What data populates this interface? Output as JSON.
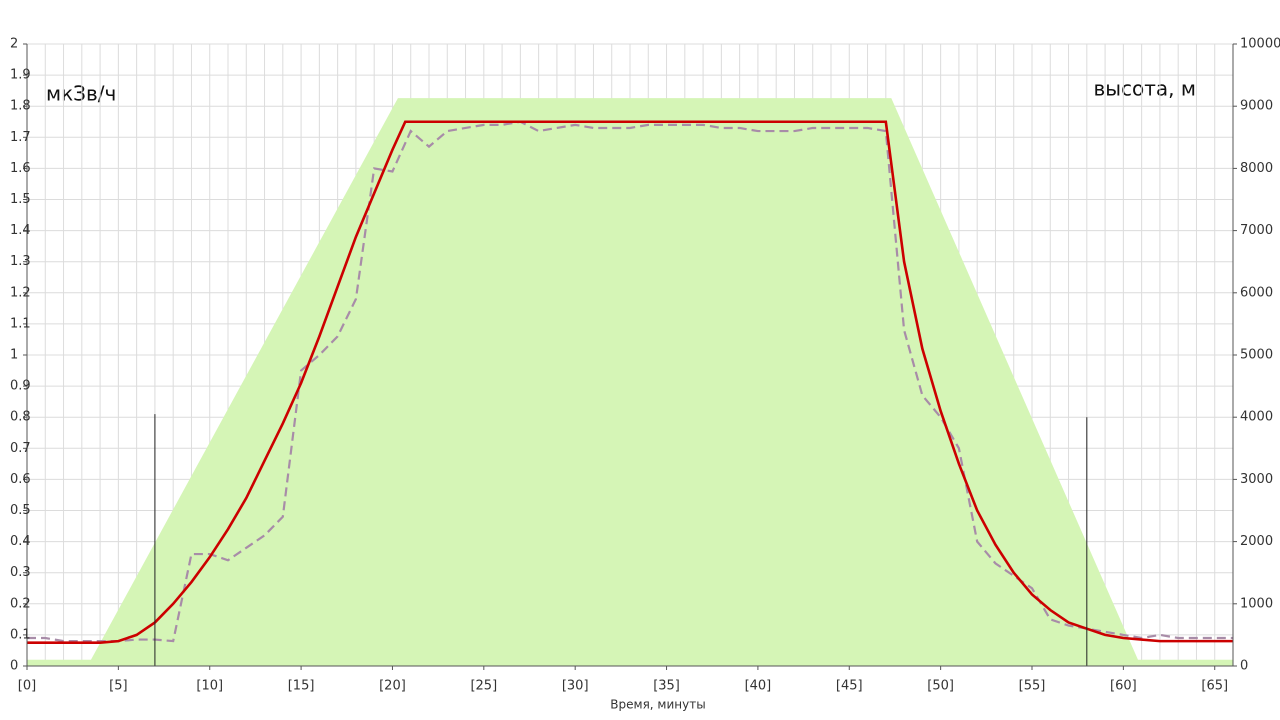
{
  "chart_data": {
    "type": "line",
    "y_label": "мкЗв/ч",
    "y2_label": "высота, м",
    "x_label": "Время, минуты",
    "xlim": [
      0,
      66
    ],
    "xticks": [
      {
        "value": 0,
        "label": "[0]"
      },
      {
        "value": 5,
        "label": "[5]"
      },
      {
        "value": 10,
        "label": "[10]"
      },
      {
        "value": 15,
        "label": "[15]"
      },
      {
        "value": 20,
        "label": "[20]"
      },
      {
        "value": 25,
        "label": "[25]"
      },
      {
        "value": 30,
        "label": "[30]"
      },
      {
        "value": 35,
        "label": "[35]"
      },
      {
        "value": 40,
        "label": "[40]"
      },
      {
        "value": 45,
        "label": "[45]"
      },
      {
        "value": 50,
        "label": "[50]"
      },
      {
        "value": 55,
        "label": "[55]"
      },
      {
        "value": 60,
        "label": "[60]"
      },
      {
        "value": 65,
        "label": "[65]"
      }
    ],
    "x_minor_grid": [
      0,
      1,
      2,
      3,
      4,
      5,
      6,
      7,
      8,
      9,
      10,
      11,
      12,
      13,
      14,
      15,
      16,
      17,
      18,
      19,
      20,
      21,
      22,
      23,
      24,
      25,
      26,
      27,
      28,
      29,
      30,
      31,
      32,
      33,
      34,
      35,
      36,
      37,
      38,
      39,
      40,
      41,
      42,
      43,
      44,
      45,
      46,
      47,
      48,
      49,
      50,
      51,
      52,
      53,
      54,
      55,
      56,
      57,
      58,
      59,
      60,
      61,
      62,
      63,
      64,
      65,
      66
    ],
    "ylim": [
      0,
      2
    ],
    "yticks": [
      0,
      0.1,
      0.2,
      0.3,
      0.4,
      0.5,
      0.6,
      0.7,
      0.8,
      0.9,
      1,
      1.1,
      1.2,
      1.3,
      1.4,
      1.5,
      1.6,
      1.7,
      1.8,
      1.9,
      2
    ],
    "y2lim": [
      0,
      10000
    ],
    "y2ticks": [
      0,
      1000,
      2000,
      3000,
      4000,
      5000,
      6000,
      7000,
      8000,
      9000,
      10000
    ],
    "grid": true,
    "series": [
      {
        "style": "area",
        "axis": "y2",
        "color": "#d5f5b6",
        "x": [
          0,
          3.5,
          20.3,
          47.3,
          60.8,
          66
        ],
        "values": [
          100,
          100,
          9130,
          9130,
          100,
          100
        ]
      },
      {
        "style": "dashed",
        "color": "#a88ca8",
        "x": [
          0,
          1,
          2,
          3,
          4,
          5,
          6,
          7,
          8,
          9,
          10,
          11,
          12,
          13,
          14,
          15,
          16,
          17,
          18,
          19,
          20,
          21,
          22,
          23,
          24,
          25,
          26,
          27,
          28,
          29,
          30,
          31,
          32,
          33,
          34,
          35,
          36,
          37,
          38,
          39,
          40,
          41,
          42,
          43,
          44,
          45,
          46,
          47,
          48,
          49,
          50,
          51,
          52,
          53,
          54,
          55,
          56,
          57,
          58,
          59,
          60,
          61,
          62,
          63,
          64,
          65,
          66
        ],
        "values": [
          0.09,
          0.09,
          0.08,
          0.08,
          0.08,
          0.08,
          0.085,
          0.085,
          0.08,
          0.36,
          0.36,
          0.34,
          0.38,
          0.42,
          0.48,
          0.95,
          1.0,
          1.06,
          1.18,
          1.6,
          1.59,
          1.72,
          1.67,
          1.72,
          1.73,
          1.74,
          1.74,
          1.75,
          1.72,
          1.73,
          1.74,
          1.73,
          1.73,
          1.73,
          1.74,
          1.74,
          1.74,
          1.74,
          1.73,
          1.73,
          1.72,
          1.72,
          1.72,
          1.73,
          1.73,
          1.73,
          1.73,
          1.72,
          1.08,
          0.87,
          0.8,
          0.7,
          0.4,
          0.33,
          0.29,
          0.25,
          0.15,
          0.13,
          0.12,
          0.11,
          0.1,
          0.09,
          0.1,
          0.09,
          0.09,
          0.09,
          0.09
        ]
      },
      {
        "style": "solid",
        "color": "#cc0000",
        "x": [
          0,
          4,
          5,
          6,
          7,
          8,
          9,
          10,
          11,
          12,
          13,
          14,
          15,
          16,
          17,
          18,
          19,
          20,
          20.7,
          47,
          48,
          49,
          50,
          51,
          52,
          53,
          54,
          55,
          56,
          57,
          58,
          59,
          60,
          61,
          62,
          66
        ],
        "values": [
          0.075,
          0.075,
          0.08,
          0.1,
          0.14,
          0.2,
          0.27,
          0.35,
          0.44,
          0.54,
          0.66,
          0.78,
          0.91,
          1.06,
          1.22,
          1.38,
          1.52,
          1.66,
          1.75,
          1.75,
          1.3,
          1.02,
          0.82,
          0.65,
          0.5,
          0.39,
          0.3,
          0.23,
          0.18,
          0.14,
          0.12,
          0.1,
          0.09,
          0.085,
          0.08,
          0.08
        ]
      }
    ],
    "reference_lines": [
      {
        "x": 7,
        "y": 0.81
      },
      {
        "x": 58,
        "y": 0.8
      }
    ]
  }
}
